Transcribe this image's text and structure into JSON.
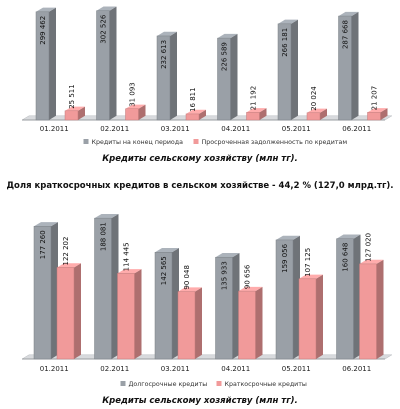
{
  "page": {
    "caption_top": "Кредиты сельскому хозяйству (млн тг).",
    "middle_text": "Доля краткосрочных кредитов в сельском хозяйстве - 44,2 % (127,0 млрд.тг).",
    "caption_bottom": "Кредиты сельскому хозяйству (млн тг)."
  },
  "chart_data": [
    {
      "type": "bar",
      "title": "",
      "categories": [
        "01.2011",
        "02.2011",
        "03.2011",
        "04.2011",
        "05.2011",
        "06.2011"
      ],
      "series": [
        {
          "name": "Кредиты на конец периода",
          "values": [
            299462,
            302526,
            232613,
            226589,
            266181,
            287668
          ],
          "labels": [
            "299 462",
            "302 526",
            "232 613",
            "226 589",
            "266 181",
            "287 668"
          ],
          "color": "#9aa0a7"
        },
        {
          "name": "Просроченная задолженность по кредитам",
          "values": [
            25511,
            31093,
            16811,
            21192,
            20024,
            21207
          ],
          "labels": [
            "25 511",
            "31 093",
            "16 811",
            "21 192",
            "20 024",
            "21 207"
          ],
          "color": "#f19a9a"
        }
      ],
      "ylim": [
        0,
        310000
      ],
      "legend_position": "bottom",
      "grid": false
    },
    {
      "type": "bar",
      "title": "",
      "categories": [
        "01.2011",
        "02.2011",
        "03.2011",
        "04.2011",
        "05.2011",
        "06.2011"
      ],
      "series": [
        {
          "name": "Долгосрочные кредиты",
          "values": [
            177260,
            188081,
            142565,
            135933,
            159056,
            160648
          ],
          "labels": [
            "177 260",
            "188 081",
            "142 565",
            "135 933",
            "159 056",
            "160 648"
          ],
          "color": "#9aa0a7"
        },
        {
          "name": "Краткосрочные кредиты",
          "values": [
            122202,
            114445,
            90048,
            90656,
            107125,
            127020
          ],
          "labels": [
            "122 202",
            "114 445",
            "90 048",
            "90 656",
            "107 125",
            "127 020"
          ],
          "color": "#f19a9a"
        }
      ],
      "ylim": [
        0,
        195000
      ],
      "legend_position": "bottom",
      "grid": false
    }
  ]
}
